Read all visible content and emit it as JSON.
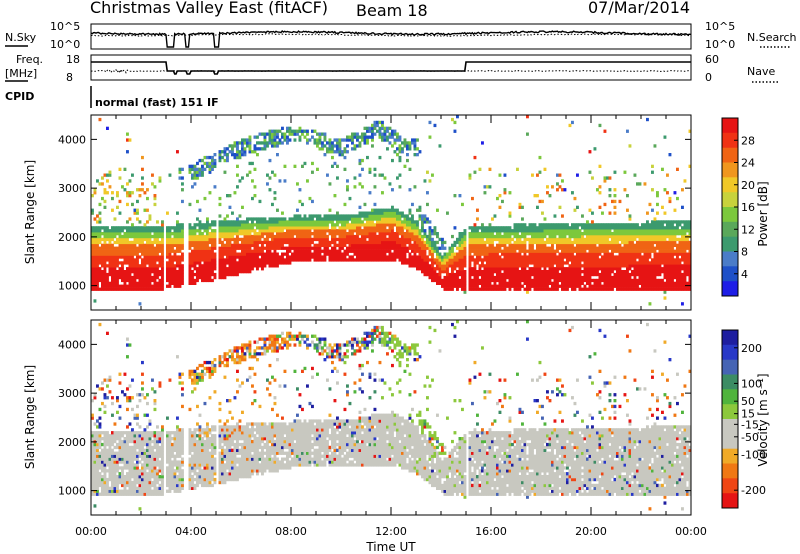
{
  "header": {
    "title": "Christmas Valley East (fitACF)",
    "beam": "Beam 18",
    "date": "07/Mar/2014"
  },
  "strip_labels": {
    "nsky": "N.Sky",
    "nsearch": "N.Search",
    "freq": "Freq.",
    "freq_unit": "[MHz]",
    "nave": "Nave",
    "cpid": "CPID",
    "cpid_value": "normal (fast) 151 IF",
    "nsky_ticks": [
      "10^5",
      "10^0"
    ],
    "nsearch_ticks": [
      "10^5",
      "10^0"
    ],
    "freq_ticks": [
      "18",
      "8"
    ],
    "nave_ticks": [
      "60",
      "0"
    ]
  },
  "colors": {
    "power": [
      "#1e1ee6",
      "#1e50c8",
      "#4a7cc8",
      "#3c9a6e",
      "#5aa85a",
      "#7cc83c",
      "#c8d23c",
      "#f0c828",
      "#f0961e",
      "#f06414",
      "#f03214",
      "#e61414"
    ],
    "velocity": [
      "#e61414",
      "#f04614",
      "#f07814",
      "#f0aa28",
      "#c8c8c0",
      "#c8c8c0",
      "#8cc83c",
      "#50b43c",
      "#3c8c64",
      "#4664b4",
      "#2838c8",
      "#1e1ea0"
    ],
    "velocity_gray": "#c8c8c0"
  },
  "chart_data": [
    {
      "type": "heatmap",
      "name": "power",
      "ylabel": "Slant Range [km]",
      "yticks": [
        1000,
        2000,
        3000,
        4000
      ],
      "ylim": [
        500,
        4500
      ],
      "xlim": [
        0,
        24
      ],
      "colorbar_label": "Power [dB]",
      "colorbar_ticks": [
        4,
        8,
        12,
        16,
        20,
        24,
        28
      ],
      "colorbar_range": [
        0,
        32
      ],
      "features": [
        {
          "x": [
            0,
            3,
            5,
            8,
            10,
            12,
            13,
            14,
            15,
            24
          ],
          "lower": [
            900,
            900,
            1100,
            1450,
            1450,
            1500,
            1300,
            900,
            900,
            900
          ],
          "upper": [
            2200,
            2200,
            2300,
            2400,
            2400,
            2600,
            2300,
            1600,
            2200,
            2300
          ],
          "power_db": 30
        },
        {
          "x": [
            4,
            6,
            8,
            10,
            11.5,
            12.5
          ],
          "range": [
            3300,
            3800,
            4100,
            3800,
            4200,
            3800
          ],
          "power_db": 14
        }
      ]
    },
    {
      "type": "heatmap",
      "name": "velocity",
      "ylabel": "Slant Range [km]",
      "xlabel": "Time UT",
      "yticks": [
        1000,
        2000,
        3000,
        4000
      ],
      "ylim": [
        500,
        4500
      ],
      "xlim": [
        0,
        24
      ],
      "xticks": [
        "00:00",
        "04:00",
        "08:00",
        "12:00",
        "16:00",
        "20:00",
        "00:00"
      ],
      "colorbar_label": "Velocity [m s⁻¹]",
      "colorbar_ticks": [
        -200,
        -100,
        -50,
        -15,
        15,
        50,
        100,
        200
      ],
      "colorbar_range": [
        -250,
        250
      ]
    }
  ]
}
